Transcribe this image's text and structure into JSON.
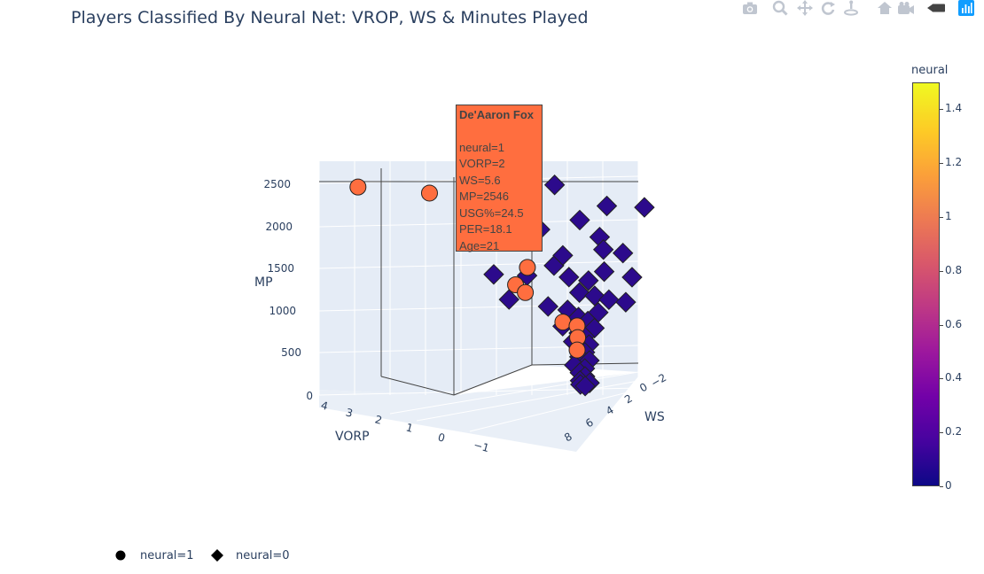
{
  "title": "Players Classified By Neural Net: VROP, WS & Minutes Played",
  "modebar": {
    "icons": [
      "camera-icon",
      "zoom-icon",
      "pan-icon",
      "orbit-rotation-icon",
      "turntable-rotation-icon",
      "reset-camera-icon",
      "reset-last-save-icon",
      "toggle-hover-icon",
      "plotly-logo-icon"
    ]
  },
  "colors": {
    "neural_1": "#ff6e3f",
    "neural_0": "#2c0a8c",
    "marker_outline": "#222222",
    "title": "#2a3f5f",
    "grid_bg": "#e5ecf6"
  },
  "hover": {
    "name": "De'Aaron Fox",
    "lines": [
      "neural=1",
      "VORP=2",
      "WS=5.6",
      "MP=2546",
      "USG%=24.5",
      "PER=18.1",
      "Age=21"
    ]
  },
  "colorbar": {
    "title": "neural",
    "ticks": [
      "1.4",
      "1.2",
      "1",
      "0.8",
      "0.6",
      "0.4",
      "0.2",
      "0"
    ]
  },
  "legend": {
    "items": [
      {
        "label": "neural=1",
        "symbol": "circle"
      },
      {
        "label": "neural=0",
        "symbol": "diamond"
      }
    ]
  },
  "chart_data": {
    "type": "scatter3d",
    "title": "Players Classified By Neural Net: VROP, WS & Minutes Played",
    "axes": {
      "x": {
        "title": "VORP",
        "ticks": [
          "4",
          "3",
          "2",
          "1",
          "0",
          "−1"
        ]
      },
      "y": {
        "title": "WS",
        "ticks": [
          "8",
          "6",
          "4",
          "2",
          "0",
          "−2"
        ]
      },
      "z": {
        "title": "MP",
        "ticks": [
          "0",
          "500",
          "1000",
          "1500",
          "2000",
          "2500"
        ],
        "range": [
          0,
          2700
        ]
      }
    },
    "grid": true,
    "legend_position": "bottom-left",
    "colorscale": "plasma",
    "color_range": [
      0,
      1.5
    ],
    "series": [
      {
        "name": "neural=1",
        "symbol": "circle",
        "color_value": 1,
        "points": [
          {
            "vorp": 4.5,
            "ws": 7.5,
            "mp": 2650
          },
          {
            "vorp": 3.0,
            "ws": 6.0,
            "mp": 2560
          },
          {
            "vorp": 2.0,
            "ws": 5.6,
            "mp": 2546
          },
          {
            "vorp": 2.0,
            "ws": 5.0,
            "mp": 2150
          },
          {
            "vorp": 1.6,
            "ws": 4.6,
            "mp": 1980
          },
          {
            "vorp": 1.0,
            "ws": 3.0,
            "mp": 1600
          },
          {
            "vorp": 1.2,
            "ws": 3.5,
            "mp": 1400
          },
          {
            "vorp": 1.0,
            "ws": 3.2,
            "mp": 1300
          },
          {
            "vorp": 0.3,
            "ws": 1.5,
            "mp": 900
          },
          {
            "vorp": 0.0,
            "ws": 1.2,
            "mp": 850
          },
          {
            "vorp": 0.0,
            "ws": 1.0,
            "mp": 700
          },
          {
            "vorp": 0.0,
            "ws": 1.0,
            "mp": 550
          }
        ]
      },
      {
        "name": "neural=0",
        "symbol": "diamond",
        "color_value": 0,
        "points": [
          {
            "vorp": 0.5,
            "ws": 2.5,
            "mp": 2600
          },
          {
            "vorp": -0.5,
            "ws": 0.5,
            "mp": 2300
          },
          {
            "vorp": -1.2,
            "ws": -1.0,
            "mp": 2250
          },
          {
            "vorp": 0.0,
            "ws": 1.5,
            "mp": 2150
          },
          {
            "vorp": 0.8,
            "ws": 2.5,
            "mp": 2050
          },
          {
            "vorp": -0.3,
            "ws": 0.0,
            "mp": 1900
          },
          {
            "vorp": 1.6,
            "ws": 4.5,
            "mp": 1550
          },
          {
            "vorp": 1.0,
            "ws": 3.0,
            "mp": 1500
          },
          {
            "vorp": 0.5,
            "ws": 2.0,
            "mp": 1600
          },
          {
            "vorp": 0.2,
            "ws": 1.5,
            "mp": 1450
          },
          {
            "vorp": -0.2,
            "ws": 1.0,
            "mp": 1400
          },
          {
            "vorp": -0.5,
            "ws": 0.5,
            "mp": 1500
          },
          {
            "vorp": 0.0,
            "ws": 1.0,
            "mp": 1250
          },
          {
            "vorp": -0.3,
            "ws": 0.5,
            "mp": 1200
          },
          {
            "vorp": 0.6,
            "ws": 2.0,
            "mp": 1100
          },
          {
            "vorp": 0.2,
            "ws": 1.5,
            "mp": 1050
          },
          {
            "vorp": -0.6,
            "ws": 0.2,
            "mp": 1150
          },
          {
            "vorp": -0.4,
            "ws": 0.5,
            "mp": 1000
          },
          {
            "vorp": 0.0,
            "ws": 1.0,
            "mp": 950
          },
          {
            "vorp": -0.2,
            "ws": 0.8,
            "mp": 900
          },
          {
            "vorp": 0.3,
            "ws": 1.5,
            "mp": 850
          },
          {
            "vorp": 1.4,
            "ws": 3.0,
            "mp": 1200
          },
          {
            "vorp": -0.3,
            "ws": 0.3,
            "mp": 800
          },
          {
            "vorp": 0.0,
            "ws": 0.8,
            "mp": 750
          },
          {
            "vorp": -0.1,
            "ws": 0.5,
            "mp": 700
          },
          {
            "vorp": 0.1,
            "ws": 1.0,
            "mp": 650
          },
          {
            "vorp": -0.2,
            "ws": 0.4,
            "mp": 600
          },
          {
            "vorp": 0.0,
            "ws": 0.6,
            "mp": 550
          },
          {
            "vorp": -0.1,
            "ws": 0.3,
            "mp": 500
          },
          {
            "vorp": 0.0,
            "ws": 0.5,
            "mp": 450
          },
          {
            "vorp": -0.2,
            "ws": 0.2,
            "mp": 400
          },
          {
            "vorp": 0.1,
            "ws": 0.6,
            "mp": 350
          },
          {
            "vorp": -0.1,
            "ws": 0.2,
            "mp": 300
          },
          {
            "vorp": 0.0,
            "ws": 0.3,
            "mp": 250
          },
          {
            "vorp": -0.1,
            "ws": 0.1,
            "mp": 200
          },
          {
            "vorp": 0.0,
            "ws": 0.2,
            "mp": 150
          },
          {
            "vorp": -0.2,
            "ws": 0.0,
            "mp": 120
          },
          {
            "vorp": 0.0,
            "ws": 0.1,
            "mp": 100
          },
          {
            "vorp": -0.1,
            "ws": 0.0,
            "mp": 80
          },
          {
            "vorp": -0.8,
            "ws": -0.5,
            "mp": 1700
          },
          {
            "vorp": -1.0,
            "ws": -0.8,
            "mp": 1400
          },
          {
            "vorp": -0.9,
            "ws": -0.6,
            "mp": 1100
          },
          {
            "vorp": 0.4,
            "ws": 1.2,
            "mp": 1700
          },
          {
            "vorp": -0.4,
            "ws": 0.0,
            "mp": 1750
          }
        ]
      }
    ]
  }
}
